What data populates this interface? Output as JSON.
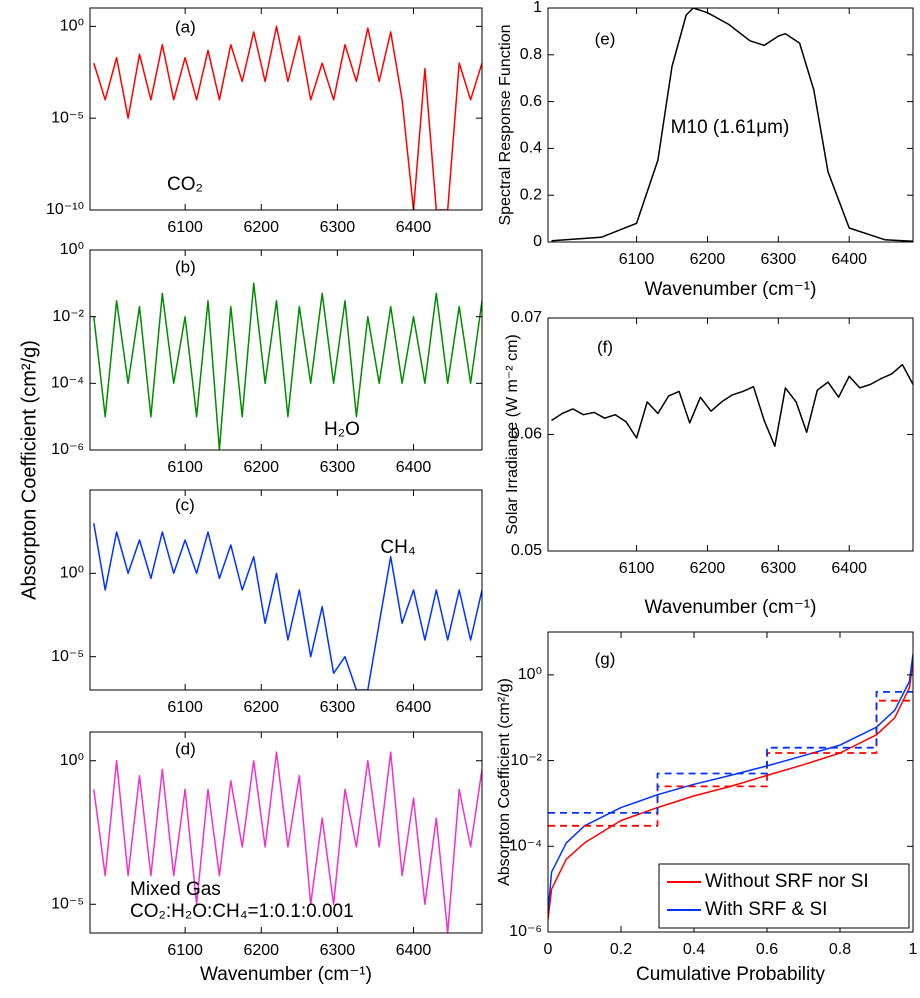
{
  "y_label_left": "Absorpton Coefficient (cm²/g)",
  "chart_data": [
    {
      "type": "line",
      "log_y": true,
      "annotations": [
        {
          "text": "(a)",
          "color": "#000000"
        },
        {
          "text": "CO₂",
          "color": "#ff0000"
        }
      ],
      "xlim": [
        5975,
        6490
      ],
      "xticks": [
        6100,
        6200,
        6300,
        6400
      ],
      "ylim": [
        1e-10,
        10
      ],
      "yticks": [
        {
          "value": 1e-10,
          "label": "10⁻¹⁰"
        },
        {
          "value": 1e-05,
          "label": "10⁻⁵"
        },
        {
          "value": 1,
          "label": "10⁰"
        }
      ],
      "series": [
        {
          "color": "#ff0000",
          "x": [
            5980,
            5995,
            6010,
            6025,
            6040,
            6055,
            6070,
            6085,
            6100,
            6115,
            6130,
            6145,
            6160,
            6175,
            6190,
            6205,
            6220,
            6235,
            6250,
            6265,
            6280,
            6295,
            6310,
            6325,
            6340,
            6355,
            6370,
            6385,
            6400,
            6415,
            6430,
            6445,
            6460,
            6475,
            6490
          ],
          "values": [
            0.01,
            0.0001,
            0.02,
            1e-05,
            0.03,
            0.0001,
            0.1,
            0.0001,
            0.02,
            0.0001,
            0.05,
            0.0001,
            0.1,
            0.001,
            0.5,
            0.001,
            1,
            0.001,
            0.3,
            0.0001,
            0.01,
            0.0001,
            0.1,
            0.001,
            0.8,
            0.001,
            0.5,
            0.0001,
            1e-10,
            0.005,
            1e-10,
            1e-10,
            0.01,
            0.0001,
            0.01
          ]
        }
      ]
    },
    {
      "type": "line",
      "log_y": true,
      "annotations": [
        {
          "text": "(b)",
          "color": "#000000"
        },
        {
          "text": "H₂O",
          "color": "#008c00"
        }
      ],
      "xlim": [
        5975,
        6490
      ],
      "xticks": [
        6100,
        6200,
        6300,
        6400
      ],
      "ylim": [
        1e-06,
        1
      ],
      "yticks": [
        {
          "value": 1e-06,
          "label": "10⁻⁶"
        },
        {
          "value": 0.0001,
          "label": "10⁻⁴"
        },
        {
          "value": 0.01,
          "label": "10⁻²"
        },
        {
          "value": 1,
          "label": "10⁰"
        }
      ],
      "series": [
        {
          "color": "#008c00",
          "x": [
            5980,
            5995,
            6010,
            6025,
            6040,
            6055,
            6070,
            6085,
            6100,
            6115,
            6130,
            6145,
            6160,
            6175,
            6190,
            6205,
            6220,
            6235,
            6250,
            6265,
            6280,
            6295,
            6310,
            6325,
            6340,
            6355,
            6370,
            6385,
            6400,
            6415,
            6430,
            6445,
            6460,
            6475,
            6490
          ],
          "values": [
            0.01,
            1e-05,
            0.03,
            0.0001,
            0.02,
            1e-05,
            0.05,
            0.0001,
            0.01,
            1e-05,
            0.03,
            1e-06,
            0.02,
            1e-05,
            0.1,
            0.0001,
            0.03,
            1e-05,
            0.02,
            0.0001,
            0.05,
            0.0001,
            0.03,
            1e-05,
            0.01,
            0.0001,
            0.02,
            0.0001,
            0.01,
            0.0001,
            0.05,
            0.0001,
            0.02,
            0.0001,
            0.03
          ]
        }
      ]
    },
    {
      "type": "line",
      "log_y": true,
      "annotations": [
        {
          "text": "(c)",
          "color": "#000000"
        },
        {
          "text": "CH₄",
          "color": "#0033ff"
        }
      ],
      "xlim": [
        5975,
        6490
      ],
      "xticks": [
        6100,
        6200,
        6300,
        6400
      ],
      "ylim": [
        1e-07,
        100000
      ],
      "yticks": [
        {
          "value": 1e-05,
          "label": "10⁻⁵"
        },
        {
          "value": 1,
          "label": "10⁰"
        }
      ],
      "series": [
        {
          "color": "#0033ff",
          "x": [
            5980,
            5995,
            6010,
            6025,
            6040,
            6055,
            6070,
            6085,
            6100,
            6115,
            6130,
            6145,
            6160,
            6175,
            6190,
            6205,
            6220,
            6235,
            6250,
            6265,
            6280,
            6295,
            6310,
            6325,
            6340,
            6355,
            6370,
            6385,
            6400,
            6415,
            6430,
            6445,
            6460,
            6475,
            6490
          ],
          "values": [
            1000,
            0.1,
            300,
            1,
            100,
            0.5,
            300,
            1,
            100,
            1,
            300,
            0.5,
            50,
            0.1,
            10,
            0.001,
            1,
            0.0001,
            0.1,
            1e-05,
            0.01,
            1e-06,
            1e-05,
            1e-07,
            1e-07,
            0.001,
            10,
            0.001,
            0.1,
            0.0001,
            0.1,
            0.0001,
            0.1,
            0.0001,
            0.1
          ]
        }
      ]
    },
    {
      "type": "line",
      "log_y": true,
      "x_label": "Wavenumber (cm⁻¹)",
      "annotations": [
        {
          "text": "(d)",
          "color": "#000000"
        },
        {
          "text": "Mixed Gas",
          "color": "#ee33cc"
        },
        {
          "text": "CO₂:H₂O:CH₄=1:0.1:0.001",
          "color": "#ee33cc"
        }
      ],
      "xlim": [
        5975,
        6490
      ],
      "xticks": [
        6100,
        6200,
        6300,
        6400
      ],
      "ylim": [
        1e-06,
        10
      ],
      "yticks": [
        {
          "value": 1e-05,
          "label": "10⁻⁵"
        },
        {
          "value": 1,
          "label": "10⁰"
        }
      ],
      "series": [
        {
          "color": "#ee33cc",
          "x": [
            5980,
            5995,
            6010,
            6025,
            6040,
            6055,
            6070,
            6085,
            6100,
            6115,
            6130,
            6145,
            6160,
            6175,
            6190,
            6205,
            6220,
            6235,
            6250,
            6265,
            6280,
            6295,
            6310,
            6325,
            6340,
            6355,
            6370,
            6385,
            6400,
            6415,
            6430,
            6445,
            6460,
            6475,
            6490
          ],
          "values": [
            0.1,
            0.0001,
            1,
            0.0001,
            0.3,
            0.0001,
            0.5,
            0.0001,
            0.1,
            1e-05,
            0.1,
            0.0001,
            0.2,
            0.001,
            1,
            0.001,
            2,
            0.001,
            0.3,
            1e-05,
            0.01,
            1e-05,
            0.1,
            0.001,
            1,
            0.001,
            2,
            0.0001,
            0.05,
            1e-05,
            0.01,
            1e-06,
            0.1,
            0.001,
            0.5
          ]
        }
      ]
    },
    {
      "type": "line",
      "x_label": "Wavenumber (cm⁻¹)",
      "y_label": "Spectral Response Function",
      "annotations": [
        {
          "text": "(e)",
          "color": "#000000"
        },
        {
          "text": "M10 (1.61μm)",
          "color": "#000000"
        }
      ],
      "xlim": [
        5975,
        6490
      ],
      "xticks": [
        6100,
        6200,
        6300,
        6400
      ],
      "ylim": [
        0,
        1
      ],
      "yticks": [
        0,
        0.2,
        0.4,
        0.6,
        0.8,
        1
      ],
      "series": [
        {
          "color": "#000000",
          "x": [
            5980,
            6050,
            6100,
            6130,
            6150,
            6170,
            6180,
            6200,
            6230,
            6260,
            6280,
            6300,
            6310,
            6330,
            6350,
            6370,
            6400,
            6450,
            6490
          ],
          "values": [
            0.005,
            0.02,
            0.08,
            0.35,
            0.75,
            0.97,
            1,
            0.98,
            0.93,
            0.86,
            0.84,
            0.88,
            0.89,
            0.85,
            0.65,
            0.3,
            0.06,
            0.01,
            0.003
          ]
        }
      ]
    },
    {
      "type": "line",
      "x_label": "Wavenumber (cm⁻¹)",
      "y_label": "Solar Irradiance (W m⁻² cm)",
      "annotations": [
        {
          "text": "(f)",
          "color": "#000000"
        }
      ],
      "xlim": [
        5975,
        6490
      ],
      "xticks": [
        6100,
        6200,
        6300,
        6400
      ],
      "ylim": [
        0.05,
        0.07
      ],
      "yticks": [
        0.05,
        0.06,
        0.07
      ],
      "series": [
        {
          "color": "#000000",
          "x": [
            5980,
            5995,
            6010,
            6025,
            6040,
            6055,
            6070,
            6085,
            6100,
            6115,
            6130,
            6145,
            6160,
            6175,
            6190,
            6205,
            6220,
            6235,
            6250,
            6265,
            6280,
            6295,
            6310,
            6325,
            6340,
            6355,
            6370,
            6385,
            6400,
            6415,
            6430,
            6445,
            6460,
            6475,
            6490
          ],
          "values": [
            0.0612,
            0.0618,
            0.0622,
            0.0617,
            0.0619,
            0.0614,
            0.0617,
            0.0611,
            0.0597,
            0.0628,
            0.0618,
            0.0633,
            0.0637,
            0.061,
            0.0632,
            0.062,
            0.0628,
            0.0634,
            0.0637,
            0.0641,
            0.0612,
            0.059,
            0.064,
            0.0628,
            0.0602,
            0.0638,
            0.0645,
            0.0632,
            0.065,
            0.064,
            0.0643,
            0.0648,
            0.0652,
            0.066,
            0.0643
          ]
        }
      ]
    },
    {
      "type": "line",
      "log_y": true,
      "x_label": "Cumulative Probability",
      "y_label": "Absorpton Coefficient (cm²/g)",
      "legend": "lower right",
      "annotations": [
        {
          "text": "(g)",
          "color": "#000000"
        }
      ],
      "xlim": [
        0,
        1
      ],
      "xticks": [
        0,
        0.2,
        0.4,
        0.6,
        0.8,
        1
      ],
      "ylim": [
        1e-06,
        10
      ],
      "yticks": [
        {
          "value": 1e-06,
          "label": "10⁻⁶"
        },
        {
          "value": 0.0001,
          "label": "10⁻⁴"
        },
        {
          "value": 0.01,
          "label": "10⁻²"
        },
        {
          "value": 1,
          "label": "10⁰"
        }
      ],
      "series": [
        {
          "name": "Without SRF nor SI",
          "color": "#ff0000",
          "x": [
            0,
            0.01,
            0.05,
            0.1,
            0.2,
            0.3,
            0.4,
            0.5,
            0.6,
            0.7,
            0.8,
            0.9,
            0.95,
            0.99,
            1
          ],
          "values": [
            2e-06,
            1e-05,
            5e-05,
            0.00012,
            0.0004,
            0.0008,
            0.0015,
            0.0025,
            0.0045,
            0.008,
            0.015,
            0.04,
            0.1,
            0.5,
            2
          ]
        },
        {
          "name": "With SRF & SI",
          "color": "#0033ff",
          "x": [
            0,
            0.01,
            0.05,
            0.1,
            0.2,
            0.3,
            0.4,
            0.5,
            0.6,
            0.7,
            0.8,
            0.9,
            0.95,
            0.99,
            1
          ],
          "values": [
            3e-06,
            2.5e-05,
            0.00012,
            0.0003,
            0.0008,
            0.0016,
            0.0028,
            0.0045,
            0.0075,
            0.013,
            0.023,
            0.06,
            0.15,
            0.7,
            3
          ]
        },
        {
          "color": "#ff0000",
          "dashed": true,
          "x": [
            0,
            0.3,
            0.3,
            0.6,
            0.6,
            0.9,
            0.9,
            1
          ],
          "values": [
            0.0003,
            0.0003,
            0.0025,
            0.0025,
            0.015,
            0.015,
            0.25,
            0.25
          ]
        },
        {
          "color": "#0033ff",
          "dashed": true,
          "x": [
            0,
            0.3,
            0.3,
            0.6,
            0.6,
            0.9,
            0.9,
            1
          ],
          "values": [
            0.0006,
            0.0006,
            0.005,
            0.005,
            0.02,
            0.02,
            0.4,
            0.4
          ]
        }
      ]
    }
  ]
}
